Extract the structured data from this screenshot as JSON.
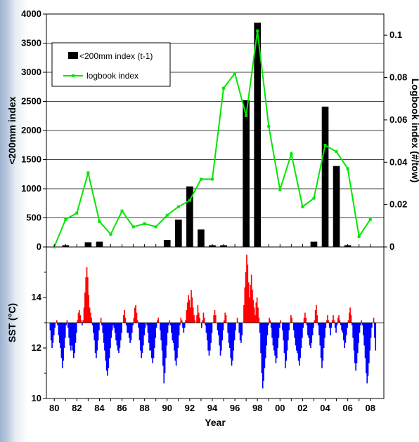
{
  "chart_data": [
    {
      "type": "bar+line",
      "title": "",
      "xlabel": "",
      "ylabel": "<200mm index",
      "ylabel_right": "Logbook index (#/tow)",
      "xlim": [
        1979.3,
        2009.2
      ],
      "ylim": [
        0,
        4000
      ],
      "ylim_right": [
        0,
        0.11
      ],
      "yticks": [
        0,
        500,
        1000,
        1500,
        2000,
        2500,
        3000,
        3500,
        4000
      ],
      "yticks_right": [
        0,
        0.02,
        0.04,
        0.06,
        0.08,
        0.1
      ],
      "grid": "horizontal at y ticks",
      "legend_placement": "top-left",
      "legend": [
        "<200mm index (t-1)",
        "logbook index"
      ],
      "bar_color": "#000000",
      "line_color": "#00e600",
      "bars": {
        "name": "<200mm index (t-1)",
        "x": [
          1980,
          1981,
          1982,
          1983,
          1984,
          1985,
          1986,
          1987,
          1988,
          1989,
          1990,
          1991,
          1992,
          1993,
          1994,
          1995,
          1996,
          1997,
          1998,
          1999,
          2000,
          2001,
          2002,
          2003,
          2004,
          2005,
          2006,
          2007,
          2008
        ],
        "values": [
          0,
          30,
          0,
          80,
          90,
          0,
          0,
          0,
          0,
          0,
          120,
          470,
          1040,
          300,
          30,
          30,
          0,
          2520,
          3850,
          0,
          0,
          0,
          0,
          90,
          2410,
          1390,
          30,
          0,
          0
        ]
      },
      "line": {
        "name": "logbook index",
        "x": [
          1980,
          1981,
          1982,
          1983,
          1984,
          1985,
          1986,
          1987,
          1988,
          1989,
          1990,
          1991,
          1992,
          1993,
          1994,
          1995,
          1996,
          1997,
          1998,
          1999,
          2000,
          2001,
          2002,
          2003,
          2004,
          2005,
          2006,
          2007,
          2008
        ],
        "values": [
          0.0,
          0.013,
          0.016,
          0.035,
          0.012,
          0.006,
          0.017,
          0.0095,
          0.011,
          0.0095,
          0.015,
          0.019,
          0.022,
          0.032,
          0.032,
          0.075,
          0.082,
          0.062,
          0.102,
          0.057,
          0.027,
          0.044,
          0.019,
          0.023,
          0.048,
          0.045,
          0.037,
          0.005,
          0.013
        ]
      }
    },
    {
      "type": "area",
      "title": "",
      "xlabel": "Year",
      "ylabel": "SST (°C)",
      "xlim": [
        1979.3,
        2009.2
      ],
      "ylim": [
        10,
        16
      ],
      "yticks": [
        10,
        12,
        14
      ],
      "baseline": 13,
      "above_color": "#ff0000",
      "below_color": "#0000ff",
      "xtick_labels": [
        "80",
        "82",
        "84",
        "86",
        "88",
        "90",
        "92",
        "94",
        "96",
        "98",
        "00",
        "02",
        "04",
        "06",
        "08"
      ],
      "xticks": [
        1980,
        1982,
        1984,
        1986,
        1988,
        1990,
        1992,
        1994,
        1996,
        1998,
        2000,
        2002,
        2004,
        2006,
        2008
      ],
      "monthly": {
        "start_year": 1980,
        "values_by_year": {
          "1980": [
            13.0,
            12.7,
            12.3,
            12.0,
            12.2,
            12.5,
            12.8,
            13.0,
            13.1,
            12.9,
            12.5,
            12.2
          ],
          "1981": [
            12.0,
            11.6,
            11.2,
            11.5,
            12.0,
            12.4,
            12.9,
            13.1,
            12.8,
            12.4,
            12.1,
            11.9
          ],
          "1982": [
            12.1,
            11.9,
            11.6,
            11.8,
            12.2,
            12.6,
            13.1,
            13.4,
            13.5,
            13.3,
            13.1,
            12.9
          ],
          "1983": [
            13.1,
            13.6,
            14.2,
            14.8,
            15.2,
            14.8,
            14.1,
            13.6,
            13.4,
            13.2,
            12.9,
            12.6
          ],
          "1984": [
            12.3,
            11.8,
            11.6,
            11.9,
            12.3,
            12.7,
            13.0,
            13.2,
            12.9,
            12.6,
            12.2,
            11.9
          ],
          "1985": [
            11.5,
            11.1,
            10.9,
            11.2,
            11.6,
            12.0,
            12.4,
            12.7,
            12.9,
            12.8,
            12.6,
            12.3
          ],
          "1986": [
            12.1,
            11.9,
            11.8,
            12.0,
            12.3,
            12.6,
            13.0,
            13.3,
            13.5,
            13.2,
            12.9,
            12.6
          ],
          "1987": [
            12.6,
            12.4,
            12.2,
            12.3,
            12.6,
            12.9,
            13.2,
            13.6,
            13.7,
            13.4,
            13.1,
            12.8
          ],
          "1988": [
            12.3,
            11.9,
            11.6,
            11.8,
            12.1,
            12.5,
            12.8,
            13.0,
            12.9,
            12.6,
            12.2,
            11.9
          ],
          "1989": [
            11.9,
            11.6,
            11.4,
            11.6,
            12.0,
            12.4,
            12.8,
            13.1,
            13.2,
            13.0,
            12.7,
            12.3
          ],
          "1990": [
            11.9,
            11.3,
            10.6,
            11.0,
            11.6,
            12.1,
            12.6,
            12.9,
            13.1,
            12.9,
            12.6,
            12.3
          ],
          "1991": [
            12.2,
            11.9,
            11.5,
            11.3,
            11.6,
            12.0,
            12.5,
            12.9,
            13.2,
            13.1,
            12.8,
            12.6
          ],
          "1992": [
            12.8,
            13.1,
            13.5,
            13.8,
            14.1,
            13.9,
            13.6,
            14.3,
            14.0,
            13.6,
            13.3,
            13.1
          ],
          "1993": [
            13.0,
            13.3,
            13.7,
            13.4,
            13.2,
            13.0,
            12.8,
            13.1,
            13.4,
            13.2,
            12.9,
            12.6
          ],
          "1994": [
            12.3,
            11.9,
            11.7,
            11.9,
            12.2,
            12.6,
            13.0,
            13.3,
            13.5,
            13.3,
            13.0,
            12.7
          ],
          "1995": [
            12.5,
            12.1,
            11.7,
            11.9,
            12.3,
            12.7,
            13.1,
            13.4,
            13.3,
            13.0,
            12.6,
            12.2
          ],
          "1996": [
            12.0,
            11.6,
            11.3,
            11.5,
            11.9,
            12.3,
            12.7,
            13.0,
            13.2,
            13.0,
            12.6,
            12.3
          ],
          "1997": [
            12.2,
            12.5,
            13.0,
            13.7,
            14.4,
            15.0,
            15.7,
            15.3,
            14.6,
            14.0,
            14.5,
            14.9
          ],
          "1998": [
            14.3,
            13.9,
            13.6,
            13.3,
            13.8,
            14.0,
            13.6,
            13.2,
            12.6,
            11.8,
            11.0,
            10.4
          ],
          "1999": [
            10.7,
            11.2,
            11.6,
            12.1,
            12.5,
            12.9,
            13.2,
            13.1,
            12.8,
            12.4,
            12.1,
            11.9
          ],
          "2000": [
            11.7,
            11.4,
            11.6,
            12.0,
            12.4,
            12.8,
            13.1,
            13.0,
            12.7,
            12.3,
            11.8,
            11.2
          ],
          "2001": [
            11.5,
            11.9,
            12.3,
            12.7,
            13.0,
            13.3,
            13.2,
            13.0,
            12.7,
            12.4,
            12.1,
            11.9
          ],
          "2002": [
            11.8,
            11.5,
            11.3,
            11.6,
            12.0,
            12.4,
            12.8,
            13.2,
            13.4,
            13.2,
            12.9,
            12.5
          ],
          "2003": [
            12.4,
            12.1,
            12.0,
            12.2,
            12.5,
            12.8,
            13.1,
            13.5,
            13.7,
            13.3,
            12.9,
            12.5
          ],
          "2004": [
            12.1,
            11.6,
            11.2,
            11.5,
            12.0,
            12.4,
            12.8,
            13.1,
            13.3,
            13.1,
            12.8,
            12.5
          ],
          "2005": [
            12.8,
            13.1,
            13.3,
            13.1,
            12.8,
            12.6,
            12.9,
            13.2,
            13.3,
            13.1,
            12.9,
            12.7
          ],
          "2006": [
            12.6,
            12.3,
            12.0,
            12.2,
            12.5,
            12.8,
            13.1,
            13.4,
            13.6,
            13.3,
            12.9,
            12.4
          ],
          "2007": [
            11.9,
            11.4,
            11.1,
            11.4,
            11.8,
            12.2,
            12.6,
            12.9,
            13.1,
            12.9,
            12.5,
            12.1
          ],
          "2008": [
            11.6,
            11.0,
            10.6,
            10.9,
            11.4,
            11.9,
            12.4,
            12.8,
            13.0,
            13.2,
            12.4,
            11.9
          ]
        }
      }
    }
  ]
}
